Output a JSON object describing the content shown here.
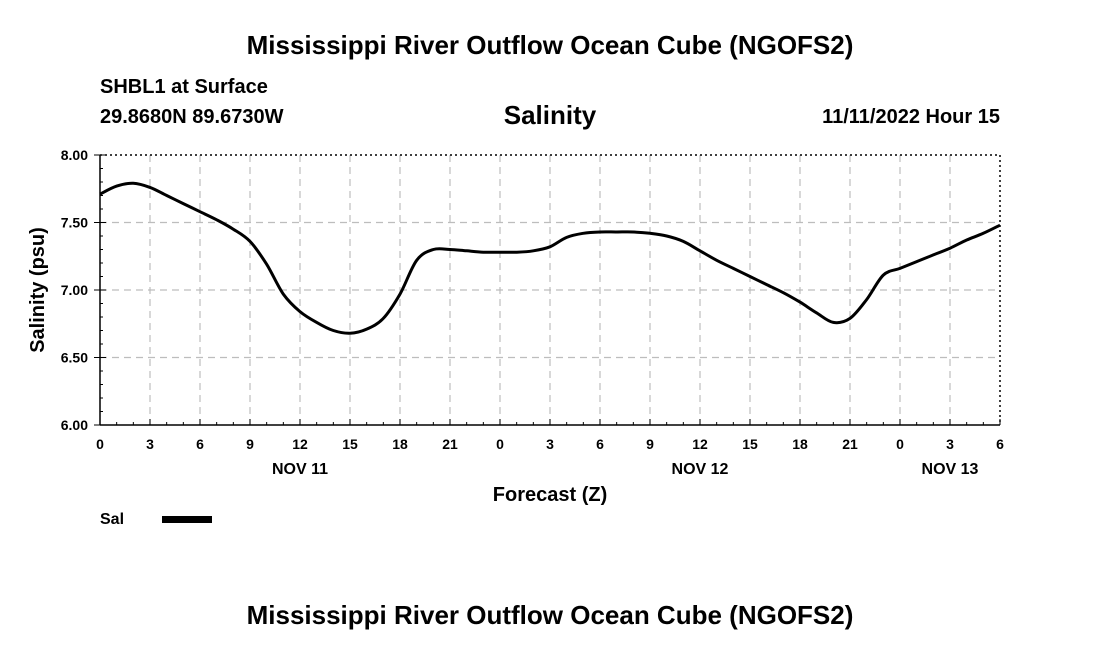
{
  "page": {
    "title": "Mississippi River Outflow Ocean Cube (NGOFS2)",
    "station": "SHBL1 at Surface",
    "coords": "29.8680N  89.6730W",
    "datetime": "11/11/2022 Hour 15",
    "footer_title": "Mississippi River Outflow Ocean Cube (NGOFS2)"
  },
  "chart_data": {
    "type": "line",
    "title": "Salinity",
    "xlabel": "Forecast (Z)",
    "ylabel": "Salinity (psu)",
    "xlim": [
      0,
      54
    ],
    "ylim": [
      6.0,
      8.0
    ],
    "x_ticks": [
      0,
      3,
      6,
      9,
      12,
      15,
      18,
      21,
      24,
      27,
      30,
      33,
      36,
      39,
      42,
      45,
      48,
      51,
      54
    ],
    "x_tick_labels": [
      "0",
      "3",
      "6",
      "9",
      "12",
      "15",
      "18",
      "21",
      "0",
      "3",
      "6",
      "9",
      "12",
      "15",
      "18",
      "21",
      "0",
      "3",
      "6"
    ],
    "date_labels": [
      {
        "x": 12,
        "text": "NOV 11"
      },
      {
        "x": 36,
        "text": "NOV 12"
      },
      {
        "x": 51,
        "text": "NOV 13"
      }
    ],
    "y_ticks": [
      6.0,
      6.5,
      7.0,
      7.5,
      8.0
    ],
    "y_tick_labels": [
      "6.00",
      "6.50",
      "7.00",
      "7.50",
      "8.00"
    ],
    "grid": true,
    "legend_position": "bottom-left",
    "series": [
      {
        "name": "Sal",
        "x": [
          0,
          1,
          2,
          3,
          4,
          5,
          6,
          7,
          8,
          9,
          10,
          11,
          12,
          13,
          14,
          15,
          16,
          17,
          18,
          19,
          20,
          21,
          22,
          23,
          24,
          25,
          26,
          27,
          28,
          29,
          30,
          31,
          32,
          33,
          34,
          35,
          36,
          37,
          38,
          39,
          40,
          41,
          42,
          43,
          44,
          45,
          46,
          47,
          48,
          49,
          50,
          51,
          52,
          53,
          54
        ],
        "values": [
          7.71,
          7.77,
          7.79,
          7.76,
          7.7,
          7.64,
          7.58,
          7.52,
          7.45,
          7.36,
          7.19,
          6.97,
          6.84,
          6.76,
          6.7,
          6.68,
          6.71,
          6.79,
          6.97,
          7.22,
          7.3,
          7.3,
          7.29,
          7.28,
          7.28,
          7.28,
          7.29,
          7.32,
          7.39,
          7.42,
          7.43,
          7.43,
          7.43,
          7.42,
          7.4,
          7.36,
          7.29,
          7.22,
          7.16,
          7.1,
          7.04,
          6.98,
          6.91,
          6.83,
          6.76,
          6.79,
          6.93,
          7.11,
          7.16,
          7.21,
          7.26,
          7.31,
          7.37,
          7.42,
          7.48
        ]
      }
    ]
  }
}
